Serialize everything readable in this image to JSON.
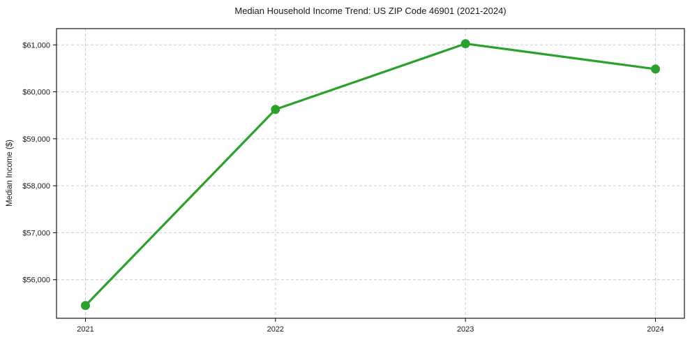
{
  "chart_data": {
    "type": "line",
    "title": "Median Household Income Trend: US ZIP Code 46901 (2021-2024)",
    "xlabel": "",
    "ylabel": "Median Income ($)",
    "x": [
      2021,
      2022,
      2023,
      2024
    ],
    "xtick_labels": [
      "2021",
      "2022",
      "2023",
      "2024"
    ],
    "series": [
      {
        "name": "Median household income",
        "values": [
          55450,
          59625,
          61025,
          60485
        ],
        "color": "#2ca02c",
        "marker": "circle"
      }
    ],
    "yticks": [
      56000,
      57000,
      58000,
      59000,
      60000,
      61000
    ],
    "ytick_labels": [
      "$56,000",
      "$57,000",
      "$58,000",
      "$59,000",
      "$60,000",
      "$61,000"
    ],
    "ylim": [
      55178,
      61346
    ],
    "grid": true,
    "grid_color": "#cccccc",
    "spine_color": "#000000",
    "tick_color": "#000000",
    "background": "#ffffff",
    "legend": "none"
  }
}
